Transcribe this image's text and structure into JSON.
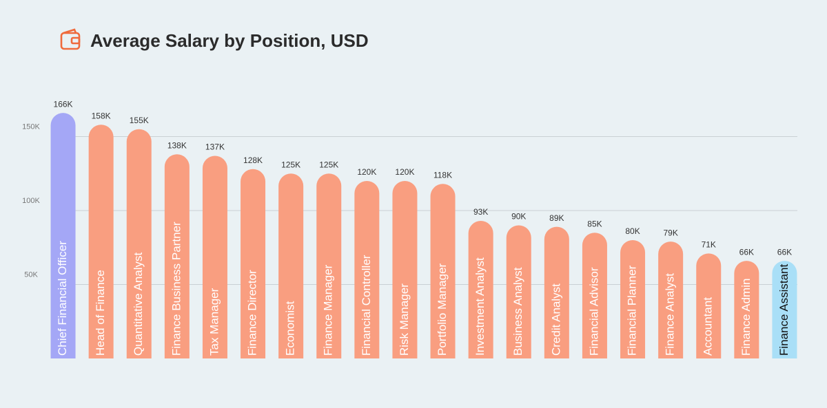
{
  "chart_data": {
    "type": "bar",
    "title": "Average Salary by Position, USD",
    "categories": [
      "Chief Financial Officer",
      "Head of Finance",
      "Quantitative Analyst",
      "Finance Business Partner",
      "Tax Manager",
      "Finance Director",
      "Economist",
      "Finance Manager",
      "Financial Controller",
      "Risk Manager",
      "Portfolio Manager",
      "Investment Analyst",
      "Business Analyst",
      "Credit Analyst",
      "Financial Advisor",
      "Financial Planner",
      "Finance Analyst",
      "Accountant",
      "Finance Admin",
      "Finance Assistant"
    ],
    "values": [
      166000,
      158000,
      155000,
      138000,
      137000,
      128000,
      125000,
      125000,
      120000,
      120000,
      118000,
      93000,
      90000,
      89000,
      85000,
      80000,
      79000,
      71000,
      66000,
      66000
    ],
    "value_labels": [
      "166K",
      "158K",
      "155K",
      "138K",
      "137K",
      "128K",
      "125K",
      "125K",
      "120K",
      "120K",
      "118K",
      "93K",
      "90K",
      "89K",
      "85K",
      "80K",
      "79K",
      "71K",
      "66K",
      "66K"
    ],
    "colors": [
      "#a4a7f6",
      "#f99e80",
      "#f99e80",
      "#f99e80",
      "#f99e80",
      "#f99e80",
      "#f99e80",
      "#f99e80",
      "#f99e80",
      "#f99e80",
      "#f99e80",
      "#f99e80",
      "#f99e80",
      "#f99e80",
      "#f99e80",
      "#f99e80",
      "#f99e80",
      "#f99e80",
      "#f99e80",
      "#a9dff7"
    ],
    "ylim": [
      0,
      200000
    ],
    "yticks": [
      {
        "value": 50000,
        "label": "50K"
      },
      {
        "value": 100000,
        "label": "100K"
      },
      {
        "value": 150000,
        "label": "150K"
      }
    ],
    "grid": true
  }
}
